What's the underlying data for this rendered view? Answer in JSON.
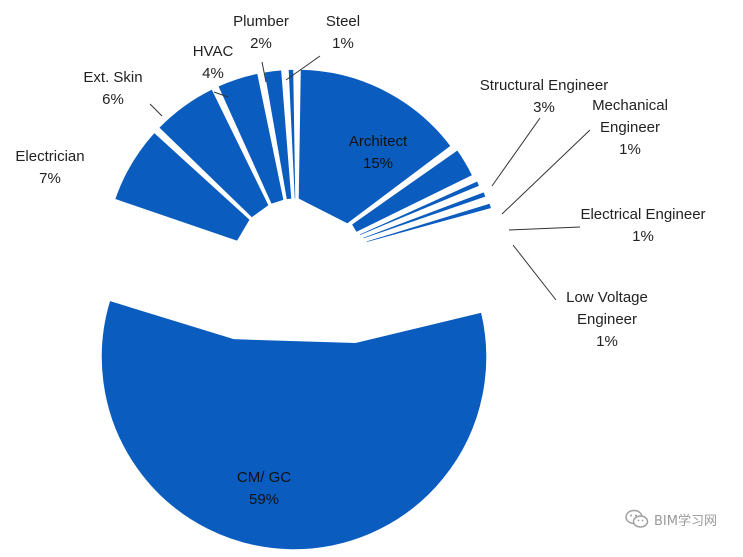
{
  "chart_data": {
    "type": "pie",
    "title": "",
    "legend": "none",
    "unit": "%",
    "slices": [
      {
        "label": "Architect",
        "value": 15,
        "text": "15%",
        "label_lines": [
          "Architect",
          "15%"
        ]
      },
      {
        "label": "Structural Engineer",
        "value": 3,
        "text": "3%",
        "label_lines": [
          "Structural Engineer",
          "3%"
        ]
      },
      {
        "label": "Mechanical Engineer",
        "value": 1,
        "text": "1%",
        "label_lines": [
          "Mechanical",
          "Engineer",
          "1%"
        ]
      },
      {
        "label": "Electrical Engineer",
        "value": 1,
        "text": "1%",
        "label_lines": [
          "Electrical Engineer",
          "1%"
        ]
      },
      {
        "label": "Low Voltage Engineer",
        "value": 1,
        "text": "1%",
        "label_lines": [
          "Low Voltage",
          "Engineer",
          "1%"
        ]
      },
      {
        "label": "CM/ GC",
        "value": 59,
        "text": "59%",
        "label_lines": [
          "CM/ GC",
          "59%"
        ]
      },
      {
        "label": "Electrician",
        "value": 7,
        "text": "7%",
        "label_lines": [
          "Electrician",
          "7%"
        ]
      },
      {
        "label": "Ext. Skin",
        "value": 6,
        "text": "6%",
        "label_lines": [
          "Ext. Skin",
          "6%"
        ]
      },
      {
        "label": "HVAC",
        "value": 4,
        "text": "4%",
        "label_lines": [
          "HVAC",
          "4%"
        ]
      },
      {
        "label": "Plumber",
        "value": 2,
        "text": "2%",
        "label_lines": [
          "Plumber",
          "2%"
        ]
      },
      {
        "label": "Steel",
        "value": 1,
        "text": "1%",
        "label_lines": [
          "Steel",
          "1%"
        ]
      }
    ],
    "colors": {
      "slice": "#0b5cbf",
      "leader": "#333333",
      "label": "#222222"
    }
  },
  "watermark": {
    "text": "BIM学习网",
    "icon": "wechat-icon"
  }
}
